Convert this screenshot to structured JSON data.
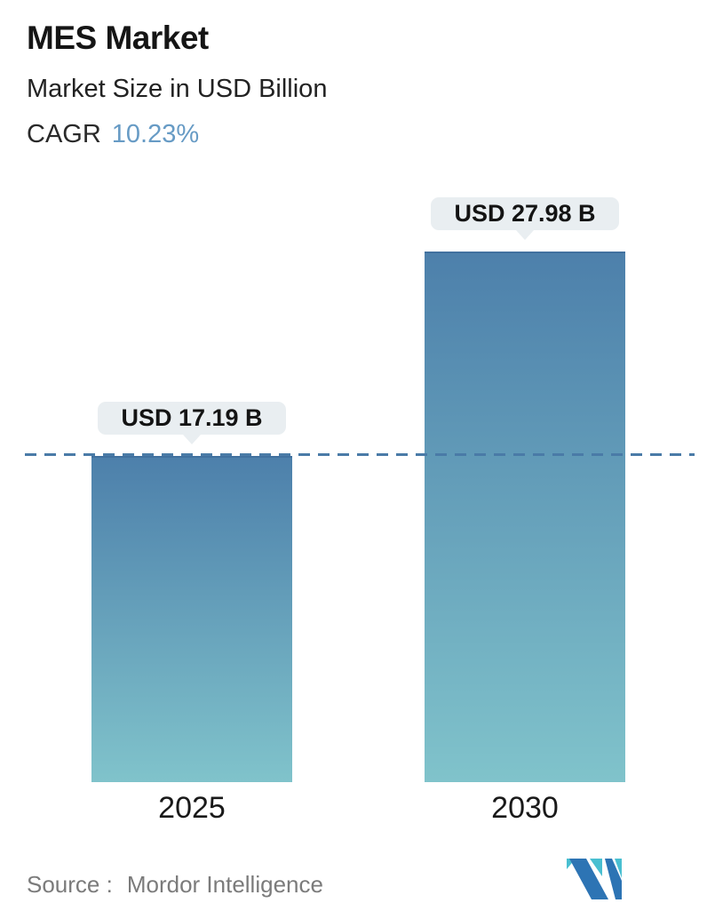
{
  "header": {
    "title": "MES Market",
    "subtitle": "Market Size in USD Billion",
    "cagr_label": "CAGR",
    "cagr_value": "10.23%"
  },
  "chart_data": {
    "type": "bar",
    "title": "MES Market",
    "ylabel": "Market Size in USD Billion",
    "unit": "USD Billion",
    "categories": [
      "2025",
      "2030"
    ],
    "values": [
      17.19,
      27.98
    ],
    "bar_labels": [
      "USD 17.19 B",
      "USD 27.98 B"
    ],
    "cagr_percent": 10.23,
    "ylim": [
      0,
      27.98
    ],
    "reference_line": {
      "value": 17.19,
      "style": "dashed"
    },
    "grid": false,
    "legend": false
  },
  "footer": {
    "source_label": "Source :",
    "source_value": "Mordor Intelligence",
    "logo_name": "mordor-intelligence-logo"
  },
  "colors": {
    "accent_text": "#679bc5",
    "bar_top": "#4d80ab",
    "bar_bottom": "#80c3cb",
    "dashed_line": "#4a7ba7",
    "label_pill_bg": "#e9eef1",
    "source_text": "#7b7b7b",
    "logo_blue": "#2d74b4",
    "logo_teal": "#49bfd1"
  }
}
